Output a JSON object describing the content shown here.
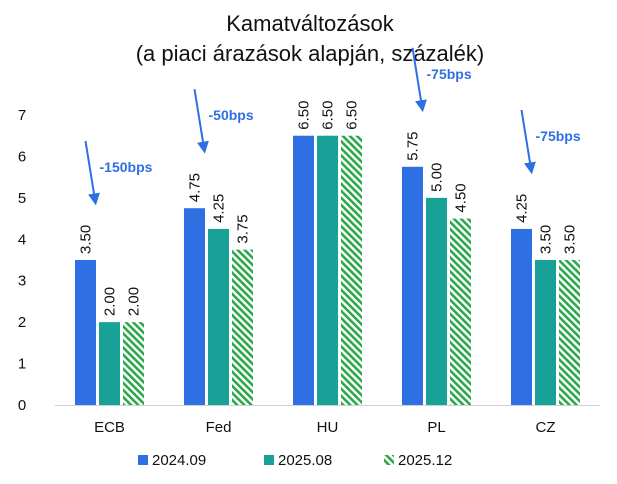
{
  "chart_data": {
    "type": "bar",
    "title": "Kamatváltozások",
    "subtitle": "(a piaci árazások alapján, százalék)",
    "categories": [
      "ECB",
      "Fed",
      "HU",
      "PL",
      "CZ"
    ],
    "series": [
      {
        "name": "2024.09",
        "values": [
          3.5,
          4.75,
          6.5,
          5.75,
          4.25
        ],
        "value_labels": [
          "3.50",
          "4.75",
          "6.50",
          "5.75",
          "4.25"
        ],
        "color": "#2F6FE4",
        "pattern": "solid"
      },
      {
        "name": "2025.08",
        "values": [
          2.0,
          4.25,
          6.5,
          5.0,
          3.5
        ],
        "value_labels": [
          "2.00",
          "4.25",
          "6.50",
          "5.00",
          "3.50"
        ],
        "color": "#17A197",
        "pattern": "solid"
      },
      {
        "name": "2025.12",
        "values": [
          2.0,
          3.75,
          6.5,
          4.5,
          3.5
        ],
        "value_labels": [
          "2.00",
          "3.75",
          "6.50",
          "4.50",
          "3.50"
        ],
        "color": "#2BA84A",
        "pattern": "diagonal-hatch"
      }
    ],
    "ylim": [
      0,
      7
    ],
    "yticks": [
      "0",
      "1",
      "2",
      "3",
      "4",
      "5",
      "6",
      "7"
    ],
    "grid": false,
    "legend_position": "bottom",
    "annotations": [
      {
        "text": "-150bps",
        "category": "ECB",
        "color": "#2F6FE4"
      },
      {
        "text": "-50bps",
        "category": "Fed",
        "color": "#2F6FE4"
      },
      {
        "text": "-75bps",
        "category": "PL",
        "color": "#2F6FE4"
      },
      {
        "text": "-75bps",
        "category": "CZ",
        "color": "#2F6FE4"
      }
    ]
  }
}
